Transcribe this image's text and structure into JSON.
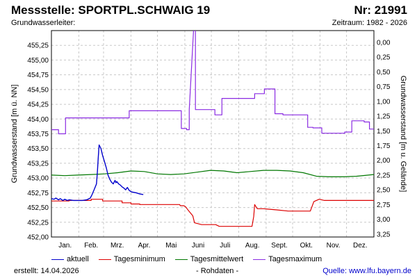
{
  "header": {
    "title": "Messstelle: SPORTPL.SCHWAIG 19",
    "number": "Nr: 21991",
    "subtitle_left": "Grundwasserleiter:",
    "subtitle_right": "Zeitraum: 1982 - 2026"
  },
  "footer": {
    "created": "erstellt:  14.04.2026",
    "raw": "- Rohdaten -",
    "source_label": "Quelle:",
    "source_link": "www.lfu.bayern.de"
  },
  "colors": {
    "aktuell": "#0000cc",
    "min": "#dd0000",
    "mittel": "#007700",
    "max": "#8a2be2",
    "grid": "#c8c8c8"
  },
  "chart_data": {
    "type": "line",
    "xlabel": "",
    "ylabel": "Grundwasserstand [m ü. NN]",
    "ylabel_right": "Grundwasserstand [m u. Gelände]",
    "ylim": [
      452.0,
      455.5
    ],
    "yticks": [
      "452,00",
      "452,25",
      "452,50",
      "452,75",
      "453,00",
      "453,25",
      "453,50",
      "453,75",
      "454,00",
      "454,25",
      "454,50",
      "454,75",
      "455,00",
      "455,25"
    ],
    "y2ticks": [
      "0,00",
      "0,25",
      "0,50",
      "0,75",
      "1,00",
      "1,25",
      "1,50",
      "1,75",
      "2,00",
      "2,25",
      "2,50",
      "2,75",
      "3,00",
      "3,25"
    ],
    "months": [
      "Jan.",
      "Feb.",
      "Mrz.",
      "Apr.",
      "Mai",
      "Juni",
      "Juli",
      "Aug.",
      "Sept.",
      "Okt.",
      "Nov.",
      "Dez."
    ],
    "grid": true,
    "legend_position": "bottom",
    "series": [
      {
        "key": "max",
        "name": "Tagesmaximum",
        "x": [
          0,
          8,
          8,
          16,
          16,
          88,
          88,
          147,
          147,
          153,
          153,
          156,
          156,
          161,
          162,
          163,
          163,
          185,
          185,
          190,
          190,
          193,
          193,
          230,
          230,
          241,
          241,
          253,
          253,
          262,
          262,
          290,
          290,
          296,
          296,
          306,
          306,
          332,
          332,
          340,
          340,
          344,
          344,
          354,
          354,
          360,
          360,
          365
        ],
        "y": [
          453.82,
          453.82,
          453.75,
          453.75,
          454.02,
          454.02,
          454.14,
          454.14,
          453.84,
          453.84,
          453.82,
          453.82,
          454.16,
          455.55,
          455.55,
          455.55,
          454.16,
          454.16,
          454.07,
          454.07,
          454.07,
          454.07,
          454.35,
          454.35,
          454.43,
          454.43,
          454.51,
          454.51,
          454.09,
          454.09,
          454.07,
          454.07,
          453.86,
          453.86,
          453.85,
          453.85,
          453.76,
          453.76,
          453.78,
          453.78,
          453.97,
          453.97,
          453.97,
          453.97,
          453.95,
          453.95,
          453.83,
          453.83
        ]
      },
      {
        "key": "mittel",
        "name": "Tagesmittelwert",
        "x": [
          0,
          15,
          30,
          45,
          60,
          75,
          90,
          105,
          120,
          135,
          150,
          165,
          180,
          195,
          210,
          225,
          240,
          255,
          270,
          285,
          300,
          315,
          330,
          345,
          365
        ],
        "y": [
          453.05,
          453.04,
          453.05,
          453.06,
          453.07,
          453.09,
          453.12,
          453.11,
          453.07,
          453.06,
          453.07,
          453.1,
          453.13,
          453.12,
          453.09,
          453.11,
          453.13,
          453.13,
          453.12,
          453.09,
          453.03,
          453.02,
          453.02,
          453.03,
          453.06
        ]
      },
      {
        "key": "min",
        "name": "Tagesminimum",
        "x": [
          0,
          20,
          20,
          45,
          45,
          58,
          58,
          80,
          80,
          90,
          90,
          100,
          100,
          145,
          145,
          146,
          146,
          150,
          150,
          152,
          152,
          155,
          155,
          160,
          160,
          162,
          162,
          170,
          170,
          186,
          186,
          190,
          190,
          227,
          227,
          229,
          229,
          230,
          230,
          233,
          233,
          240,
          240,
          255,
          255,
          268,
          268,
          293,
          293,
          297,
          297,
          303,
          303,
          309,
          309,
          330,
          330,
          365
        ],
        "y": [
          452.61,
          452.61,
          452.62,
          452.62,
          452.64,
          452.64,
          452.61,
          452.61,
          452.58,
          452.58,
          452.56,
          452.56,
          452.55,
          452.55,
          452.55,
          452.53,
          452.53,
          452.53,
          452.53,
          452.51,
          452.51,
          452.45,
          452.45,
          452.36,
          452.36,
          452.24,
          452.24,
          452.21,
          452.21,
          452.21,
          452.21,
          452.18,
          452.18,
          452.18,
          452.18,
          452.35,
          452.35,
          452.55,
          452.55,
          452.48,
          452.48,
          452.48,
          452.48,
          452.46,
          452.46,
          452.44,
          452.44,
          452.44,
          452.44,
          452.6,
          452.6,
          452.64,
          452.64,
          452.62,
          452.62,
          452.62,
          452.62,
          452.62
        ]
      },
      {
        "key": "aktuell",
        "name": "aktuell",
        "x": [
          0,
          3,
          5,
          8,
          10,
          13,
          15,
          18,
          20,
          25,
          30,
          35,
          40,
          44,
          46,
          48,
          51,
          52,
          53,
          54,
          56,
          58,
          60,
          62,
          64,
          66,
          68,
          70,
          72,
          73,
          74,
          76,
          78,
          80,
          82,
          84,
          86,
          88,
          90,
          92,
          96,
          100,
          104
        ],
        "y": [
          452.65,
          452.64,
          452.66,
          452.63,
          452.65,
          452.62,
          452.64,
          452.62,
          452.63,
          452.62,
          452.62,
          452.62,
          452.63,
          452.66,
          452.72,
          452.79,
          452.9,
          453.1,
          453.35,
          453.56,
          453.5,
          453.38,
          453.28,
          453.18,
          453.05,
          452.98,
          452.93,
          452.9,
          452.96,
          452.92,
          452.94,
          452.9,
          452.88,
          452.85,
          452.83,
          452.8,
          452.84,
          452.79,
          452.77,
          452.76,
          452.75,
          452.73,
          452.72
        ]
      }
    ]
  }
}
